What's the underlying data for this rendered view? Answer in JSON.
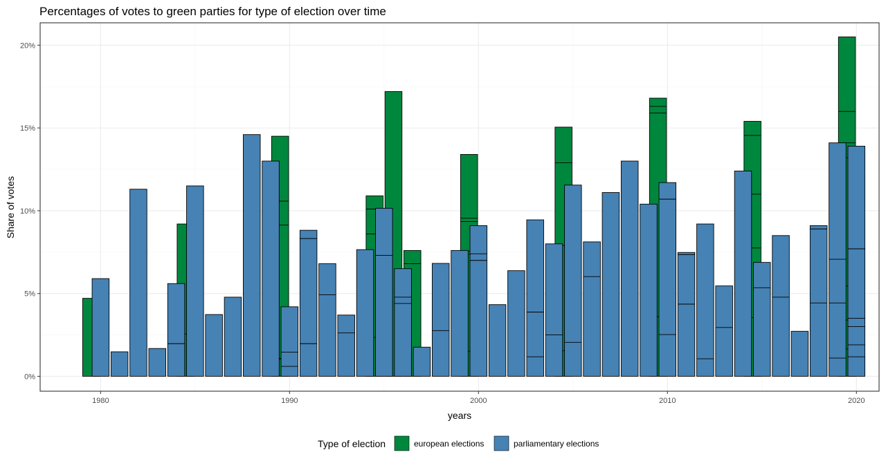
{
  "chart_data": {
    "type": "bar",
    "subtype": "stacked",
    "title": "Percentages of votes to green parties for type of election over time",
    "xlabel": "years",
    "ylabel": "Share of votes",
    "xlim": [
      1976.8,
      2021.2
    ],
    "ylim": [
      -0.009,
      0.2135
    ],
    "x_ticks": [
      1980,
      1990,
      2000,
      2010,
      2020
    ],
    "x_tick_labels": [
      "1980",
      "1990",
      "2000",
      "2010",
      "2020"
    ],
    "y_ticks": [
      0,
      0.05,
      0.1,
      0.15,
      0.2
    ],
    "y_tick_labels": [
      "0%",
      "5%",
      "10%",
      "15%",
      "20%"
    ],
    "grid": true,
    "legend": {
      "title": "Type of election",
      "position": "bottom",
      "entries": [
        {
          "name": "european elections",
          "color": "#00873E"
        },
        {
          "name": "parliamentary elections",
          "color": "#4682B4"
        }
      ]
    },
    "colors": {
      "european": "#00873E",
      "parliamentary": "#4682B4",
      "outline": "#000000"
    },
    "series": [
      {
        "name": "european elections",
        "key": "european",
        "bars": [
          {
            "year": 1979.5,
            "cuts": [
              0.0471
            ]
          },
          {
            "year": 1984.5,
            "cuts": [
              0.0256,
              0.092
            ]
          },
          {
            "year": 1989.5,
            "cuts": [
              0.0108,
              0.0104,
              0.0913,
              0.1058,
              0.145
            ]
          },
          {
            "year": 1994.5,
            "cuts": [
              0.0235,
              0.086,
              0.101,
              0.109
            ]
          },
          {
            "year": 1995.5,
            "cuts": [
              0.172
            ]
          },
          {
            "year": 1996.5,
            "cuts": [
              0.068,
              0.076
            ]
          },
          {
            "year": 1999.5,
            "cuts": [
              0.0152,
              0.0737,
              0.0755,
              0.0935,
              0.0955,
              0.134
            ]
          },
          {
            "year": 2004.5,
            "cuts": [
              0.0155,
              0.079,
              0.129,
              0.1505
            ]
          },
          {
            "year": 2009.5,
            "cuts": [
              0.036,
              0.159,
              0.163,
              0.168
            ]
          },
          {
            "year": 2014.5,
            "cuts": [
              0.0355,
              0.0775,
              0.11,
              0.1455,
              0.154
            ]
          },
          {
            "year": 2019.5,
            "cuts": [
              0.0165,
              0.034,
              0.0545,
              0.132,
              0.141,
              0.16,
              0.205
            ]
          }
        ]
      },
      {
        "name": "parliamentary elections",
        "key": "parliamentary",
        "bars": [
          {
            "year": 1980,
            "cuts": [
              0.059
            ]
          },
          {
            "year": 1981,
            "cuts": [
              0.0148
            ]
          },
          {
            "year": 1982,
            "cuts": [
              0.113
            ]
          },
          {
            "year": 1983,
            "cuts": [
              0.0168
            ]
          },
          {
            "year": 1984,
            "cuts": [
              0.0197,
              0.056
            ]
          },
          {
            "year": 1985,
            "cuts": [
              0.115
            ]
          },
          {
            "year": 1986,
            "cuts": [
              0.0373
            ]
          },
          {
            "year": 1987,
            "cuts": [
              0.0478
            ]
          },
          {
            "year": 1988,
            "cuts": [
              0.146
            ]
          },
          {
            "year": 1989,
            "cuts": [
              0.13
            ]
          },
          {
            "year": 1990,
            "cuts": [
              0.006,
              0.0146,
              0.042
            ]
          },
          {
            "year": 1991,
            "cuts": [
              0.0197,
              0.0832,
              0.0882
            ]
          },
          {
            "year": 1992,
            "cuts": [
              0.0492,
              0.068
            ]
          },
          {
            "year": 1993,
            "cuts": [
              0.0262,
              0.037
            ]
          },
          {
            "year": 1994,
            "cuts": [
              0.0765
            ]
          },
          {
            "year": 1995,
            "cuts": [
              0.073,
              0.1015
            ]
          },
          {
            "year": 1996,
            "cuts": [
              0.044,
              0.0478,
              0.065
            ]
          },
          {
            "year": 1997,
            "cuts": [
              0.0176
            ]
          },
          {
            "year": 1998,
            "cuts": [
              0.0276,
              0.0682
            ]
          },
          {
            "year": 1999,
            "cuts": [
              0.076
            ]
          },
          {
            "year": 2000,
            "cuts": [
              0.07,
              0.074,
              0.091
            ]
          },
          {
            "year": 2001,
            "cuts": [
              0.0433
            ]
          },
          {
            "year": 2002,
            "cuts": [
              0.0638
            ]
          },
          {
            "year": 2003,
            "cuts": [
              0.0118,
              0.0388,
              0.0945
            ]
          },
          {
            "year": 2004,
            "cuts": [
              0.025,
              0.08
            ]
          },
          {
            "year": 2005,
            "cuts": [
              0.0205,
              0.1155
            ]
          },
          {
            "year": 2006,
            "cuts": [
              0.0602,
              0.0812
            ]
          },
          {
            "year": 2007,
            "cuts": [
              0.111
            ]
          },
          {
            "year": 2008,
            "cuts": [
              0.13
            ]
          },
          {
            "year": 2009,
            "cuts": [
              0.104
            ]
          },
          {
            "year": 2010,
            "cuts": [
              0.0252,
              0.107,
              0.117
            ]
          },
          {
            "year": 2011,
            "cuts": [
              0.0436,
              0.0735,
              0.0748
            ]
          },
          {
            "year": 2012,
            "cuts": [
              0.0106,
              0.092
            ]
          },
          {
            "year": 2013,
            "cuts": [
              0.0295,
              0.0546
            ]
          },
          {
            "year": 2014,
            "cuts": [
              0.124
            ]
          },
          {
            "year": 2015,
            "cuts": [
              0.0535,
              0.0688
            ]
          },
          {
            "year": 2016,
            "cuts": [
              0.0478,
              0.085
            ]
          },
          {
            "year": 2017,
            "cuts": [
              0.0272
            ]
          },
          {
            "year": 2018,
            "cuts": [
              0.0443,
              0.089,
              0.091
            ]
          },
          {
            "year": 2019,
            "cuts": [
              0.011,
              0.0443,
              0.0707,
              0.141
            ]
          },
          {
            "year": 2020,
            "cuts": [
              0.0118,
              0.019,
              0.03,
              0.035,
              0.077,
              0.139
            ]
          }
        ]
      }
    ]
  }
}
